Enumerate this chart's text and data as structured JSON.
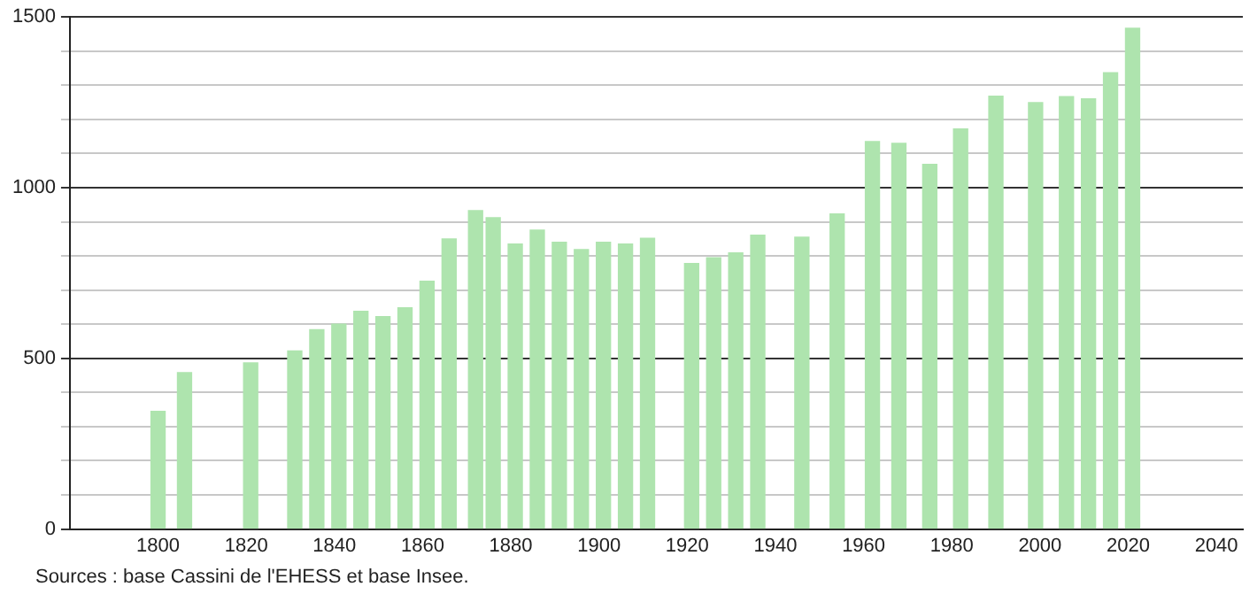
{
  "chart_data": {
    "type": "bar",
    "x": [
      1800,
      1806,
      1821,
      1831,
      1836,
      1841,
      1846,
      1851,
      1856,
      1861,
      1866,
      1872,
      1876,
      1881,
      1886,
      1891,
      1896,
      1901,
      1906,
      1911,
      1921,
      1926,
      1931,
      1936,
      1946,
      1954,
      1962,
      1968,
      1975,
      1982,
      1990,
      1999,
      2006,
      2011,
      2016,
      2021
    ],
    "values": [
      345,
      458,
      487,
      522,
      584,
      600,
      638,
      622,
      648,
      726,
      850,
      933,
      912,
      835,
      876,
      840,
      819,
      840,
      835,
      852,
      778,
      795,
      809,
      861,
      855,
      923,
      1135,
      1130,
      1068,
      1172,
      1268,
      1249,
      1267,
      1260,
      1337,
      1467
    ],
    "color": "#aee4ae",
    "xlim": [
      1780,
      2046
    ],
    "xticks": [
      1800,
      1820,
      1840,
      1860,
      1880,
      1900,
      1920,
      1940,
      1960,
      1980,
      2000,
      2020,
      2040
    ],
    "ylim": [
      0,
      1500
    ],
    "yticks": [
      0,
      {
        "value": 100,
        "label": null
      },
      {
        "value": 200,
        "label": null
      },
      {
        "value": 300,
        "label": null
      },
      {
        "value": 400,
        "label": null
      },
      500,
      {
        "value": 600,
        "label": null
      },
      {
        "value": 700,
        "label": null
      },
      {
        "value": 800,
        "label": null
      },
      {
        "value": 900,
        "label": null
      },
      1000,
      {
        "value": 1100,
        "label": null
      },
      {
        "value": 1200,
        "label": null
      },
      {
        "value": 1300,
        "label": null
      },
      {
        "value": 1400,
        "label": null
      },
      1500
    ],
    "grid": "y",
    "legend": false,
    "annotations": [
      "Sources : base Cassini de l'EHESS et base Insee."
    ]
  }
}
